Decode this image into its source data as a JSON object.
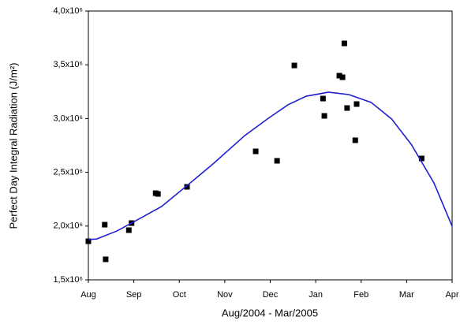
{
  "chart_data": {
    "type": "scatter",
    "x_label": "Aug/2004 - Mar/2005",
    "y_label": "Perfect Day Integral Radiation (J/m²)",
    "xlim": [
      0,
      8
    ],
    "xticks": [
      {
        "value": 0,
        "label": "Aug"
      },
      {
        "value": 1,
        "label": "Sep"
      },
      {
        "value": 2,
        "label": "Oct"
      },
      {
        "value": 3,
        "label": "Nov"
      },
      {
        "value": 4,
        "label": "Dec"
      },
      {
        "value": 5,
        "label": "Jan"
      },
      {
        "value": 6,
        "label": "Feb"
      },
      {
        "value": 7,
        "label": "Mar"
      },
      {
        "value": 8,
        "label": "Apr"
      }
    ],
    "ylim": [
      1500000,
      4000000
    ],
    "yticks": [
      {
        "value": 1500000,
        "label": "1,5x10⁶"
      },
      {
        "value": 2000000,
        "label": "2,0x10⁶"
      },
      {
        "value": 2500000,
        "label": "2,5x10⁶"
      },
      {
        "value": 3000000,
        "label": "3,0x10⁶"
      },
      {
        "value": 3500000,
        "label": "3,5x10⁶"
      },
      {
        "value": 4000000,
        "label": "4,0x10⁶"
      }
    ],
    "series": [
      {
        "type": "scatter",
        "color": "#000000",
        "x": [
          0,
          0.36,
          0.38,
          0.89,
          0.95,
          1.48,
          1.53,
          2.17,
          3.68,
          4.15,
          4.53,
          5.16,
          5.19,
          5.52,
          5.59,
          5.63,
          5.69,
          5.87,
          5.9,
          7.33
        ],
        "values": [
          1859000,
          2013000,
          1691000,
          1962000,
          2028000,
          2306000,
          2299000,
          2365000,
          2695000,
          2607000,
          3494000,
          3186000,
          3025000,
          3399000,
          3384000,
          3699000,
          3098000,
          2798000,
          3135000,
          2629000
        ]
      },
      {
        "type": "line",
        "color": "#1f1fd0",
        "x": [
          0,
          0.19,
          0.63,
          1.01,
          1.61,
          2.22,
          2.74,
          3.44,
          3.96,
          4.39,
          4.79,
          5.28,
          5.73,
          6.22,
          6.67,
          7.1,
          7.6,
          8
        ],
        "values": [
          1874000,
          1881000,
          1955000,
          2042000,
          2182000,
          2394000,
          2578000,
          2842000,
          3003000,
          3128000,
          3208000,
          3245000,
          3223000,
          3150000,
          2996000,
          2761000,
          2402000,
          1999000
        ]
      }
    ]
  }
}
